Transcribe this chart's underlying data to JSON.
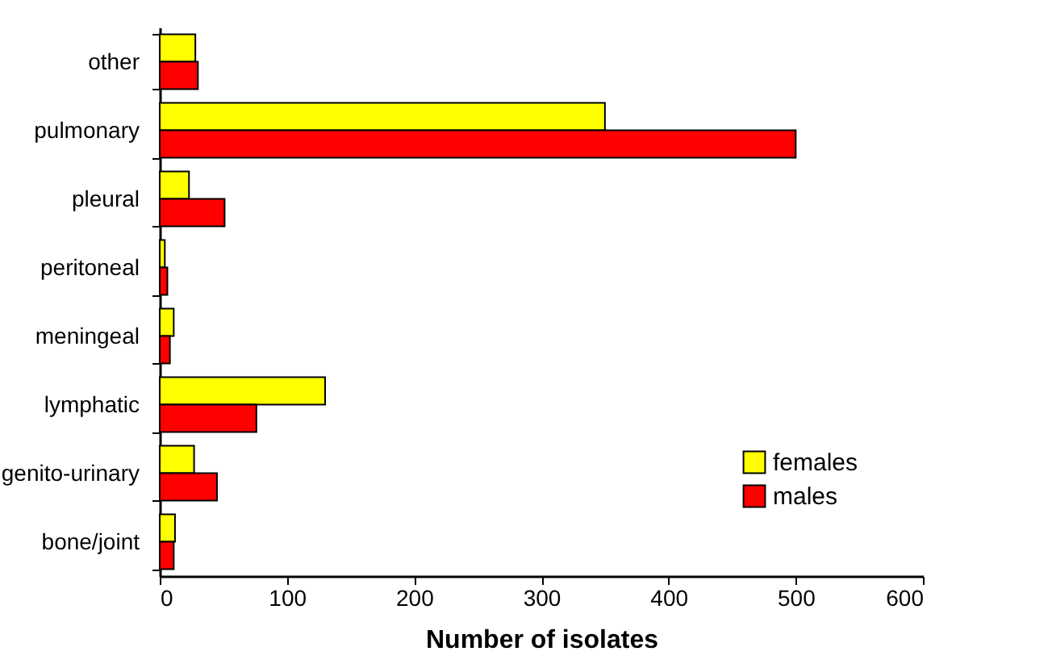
{
  "chart_data": {
    "type": "bar",
    "orientation": "horizontal",
    "xlabel": "Number of isolates",
    "categories": [
      "other",
      "pulmonary",
      "pleural",
      "peritoneal",
      "meningeal",
      "lymphatic",
      "genito-urinary",
      "bone/joint"
    ],
    "series": [
      {
        "name": "females",
        "color": "#ffff00",
        "values": [
          28,
          350,
          23,
          4,
          11,
          130,
          27,
          12
        ]
      },
      {
        "name": "males",
        "color": "#ff0000",
        "values": [
          30,
          500,
          51,
          6,
          8,
          76,
          45,
          11
        ]
      }
    ],
    "xlim": [
      0,
      600
    ],
    "xticks": [
      0,
      100,
      200,
      300,
      400,
      500,
      600
    ],
    "grid": false,
    "legend": "bottom right"
  }
}
